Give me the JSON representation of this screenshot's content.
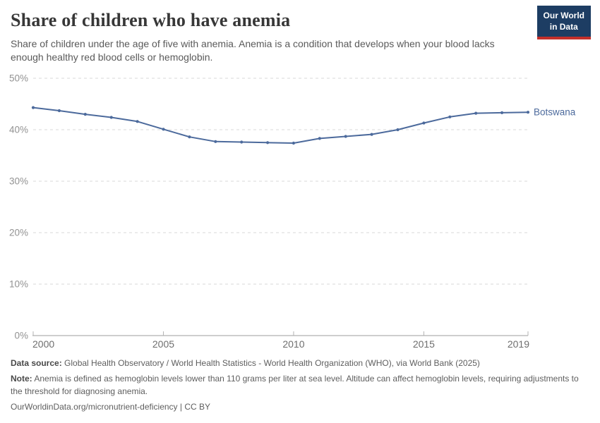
{
  "header": {
    "title": "Share of children who have anemia",
    "subtitle": "Share of children under the age of five with anemia. Anemia is a condition that develops when your blood lacks enough healthy red blood cells or hemoglobin."
  },
  "logo": {
    "line1": "Our World",
    "line2": "in Data"
  },
  "chart_data": {
    "type": "line",
    "title": "Share of children who have anemia",
    "x": [
      2000,
      2001,
      2002,
      2003,
      2004,
      2005,
      2006,
      2007,
      2008,
      2009,
      2010,
      2011,
      2012,
      2013,
      2014,
      2015,
      2016,
      2017,
      2018,
      2019
    ],
    "series": [
      {
        "name": "Botswana",
        "color": "#4c6a9c",
        "values": [
          44.3,
          43.7,
          43.0,
          42.4,
          41.6,
          40.1,
          38.6,
          37.7,
          37.6,
          37.5,
          37.4,
          38.3,
          38.7,
          39.1,
          40.0,
          41.3,
          42.5,
          43.2,
          43.3,
          43.4
        ]
      }
    ],
    "xlabel": "",
    "ylabel": "",
    "ylim": [
      0,
      50
    ],
    "yticks": [
      0,
      10,
      20,
      30,
      40,
      50
    ],
    "ytick_suffix": "%",
    "xticks": [
      2000,
      2005,
      2010,
      2015,
      2019
    ],
    "grid": "horizontal-dashed",
    "legend_position": "end-of-line-label",
    "end_label": "Botswana"
  },
  "footer": {
    "data_source_label": "Data source:",
    "data_source_text": " Global Health Observatory / World Health Statistics - World Health Organization (WHO), via World Bank (2025)",
    "note_label": "Note:",
    "note_text": " Anemia is defined as hemoglobin levels lower than 110 grams per liter at sea level. Altitude can affect hemoglobin levels, requiring adjustments to the threshold for diagnosing anemia.",
    "url": "OurWorldinData.org/micronutrient-deficiency | CC BY"
  },
  "colors": {
    "series_blue": "#4c6a9c",
    "logo_navy": "#1d3d63",
    "logo_red": "#c3302b",
    "grid_line": "#dadada",
    "axis_line": "#9c9c9c",
    "tick_mark": "#b3b3b3",
    "ytick_label": "#929292",
    "xtick_label": "#6e6e6e",
    "title_text": "#373737",
    "subtitle_text": "#5a5a5a",
    "footer_text": "#5e5e5e"
  }
}
